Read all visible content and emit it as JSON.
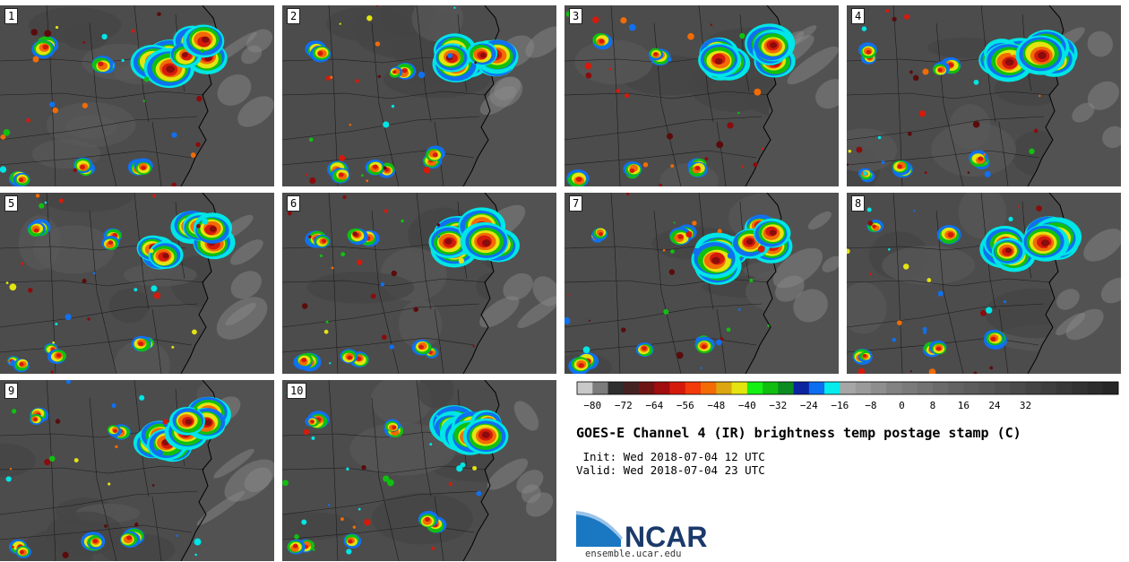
{
  "panels": [
    {
      "label": "1"
    },
    {
      "label": "2"
    },
    {
      "label": "3"
    },
    {
      "label": "4"
    },
    {
      "label": "5"
    },
    {
      "label": "6"
    },
    {
      "label": "7"
    },
    {
      "label": "8"
    },
    {
      "label": "9"
    },
    {
      "label": "10"
    }
  ],
  "colorbar": {
    "colors": [
      "#c8c8c8",
      "#7c7c7c",
      "#2e2e2e",
      "#452222",
      "#6e1414",
      "#a20e0e",
      "#d51a0c",
      "#f23a0a",
      "#f26b05",
      "#dba610",
      "#e4e410",
      "#14f014",
      "#10be10",
      "#0c8c20",
      "#0c24a0",
      "#0c6ef0",
      "#06ebeb",
      "#a6a6a6",
      "#9a9a9a",
      "#8e8e8e",
      "#828282",
      "#7a7a7a",
      "#727272",
      "#6a6a6a",
      "#626262",
      "#5c5c5c",
      "#565656",
      "#505050",
      "#4a4a4a",
      "#444444",
      "#3e3e3e",
      "#383838",
      "#323232",
      "#2c2c2c",
      "#262626"
    ],
    "ticks": [
      "−80",
      "−72",
      "−64",
      "−56",
      "−48",
      "−40",
      "−32",
      "−24",
      "−16",
      "−8",
      "0",
      "8",
      "16",
      "24",
      "32"
    ]
  },
  "title": "GOES-E Channel 4 (IR) brightness temp postage stamp (C)",
  "init": " Init: Wed 2018-07-04 12 UTC",
  "valid": "Valid: Wed 2018-07-04 23 UTC",
  "logo_text": "NCAR",
  "url": "ensemble.ucar.edu"
}
